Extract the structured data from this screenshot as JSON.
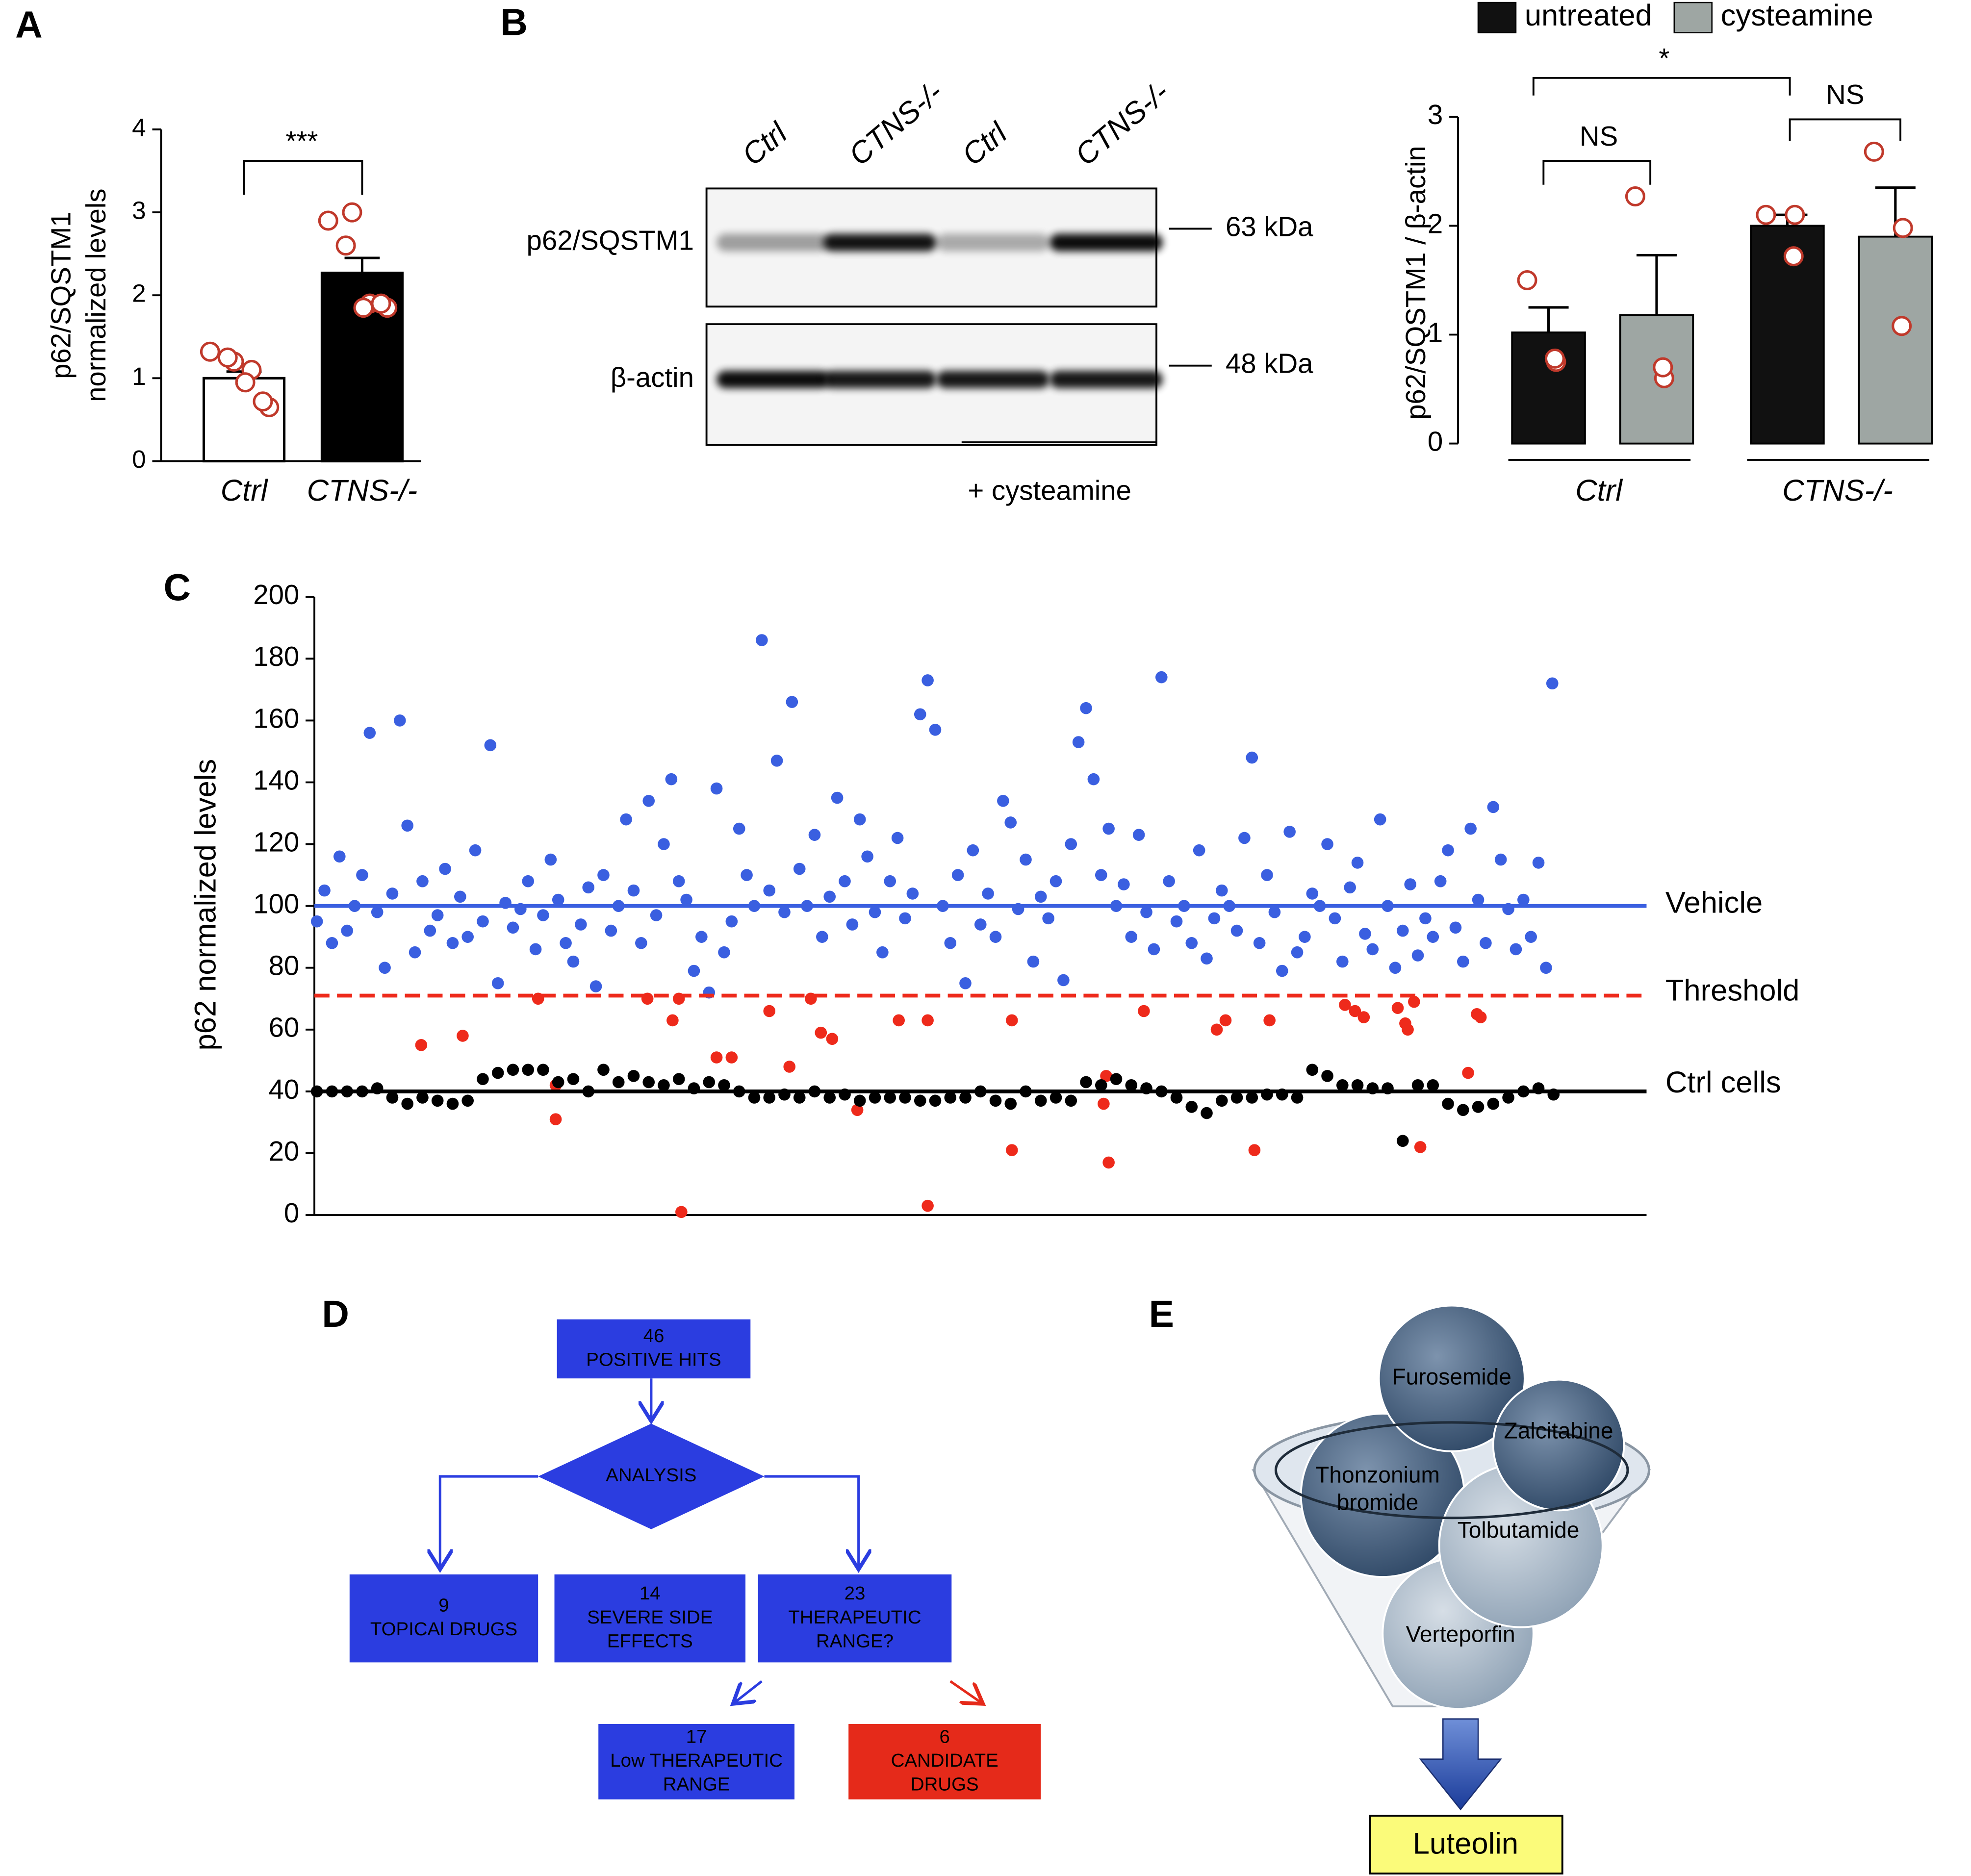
{
  "panels": [
    "A",
    "B",
    "C",
    "D",
    "E"
  ],
  "chart_data": [
    {
      "type": "bar",
      "ylabel": [
        "p62/SQSTM1",
        "normalized levels"
      ],
      "categories": [
        "Ctrl",
        "CTNS-/-"
      ],
      "values": [
        1.0,
        2.27
      ],
      "errors": [
        0.08,
        0.18
      ],
      "colors": [
        "#ffffff",
        "#000000"
      ],
      "point_color": "#c0392b",
      "points": [
        [
          1.32,
          1.2,
          1.25,
          1.1,
          0.95,
          0.65,
          0.72
        ],
        [
          2.9,
          3.0,
          2.6,
          1.9,
          1.85,
          1.85,
          1.9
        ]
      ],
      "significance": [
        "***"
      ],
      "ylim": [
        0,
        4
      ],
      "yticks": [
        0,
        1,
        2,
        3,
        4
      ]
    },
    {
      "type": "bar",
      "ylabel": "p62/SQSTM1 / β-actin",
      "categories": [
        "Ctrl",
        "CTNS-/-"
      ],
      "point_color": "#c0392b",
      "series": [
        {
          "name": "untreated",
          "color": "#111111",
          "values": [
            1.02,
            2.0
          ],
          "errors": [
            0.23,
            0.1
          ],
          "points": [
            [
              1.5,
              0.75,
              0.78
            ],
            [
              2.1,
              2.1,
              1.72
            ]
          ]
        },
        {
          "name": "cysteamine",
          "color": "#9ea6a3",
          "values": [
            1.18,
            1.9
          ],
          "errors": [
            0.55,
            0.45
          ],
          "points": [
            [
              2.27,
              0.6,
              0.7
            ],
            [
              2.68,
              1.98,
              1.08
            ]
          ]
        }
      ],
      "significance": [
        "NS",
        "NS",
        "*"
      ],
      "ylim": [
        0,
        3
      ],
      "yticks": [
        0,
        1,
        2,
        3
      ]
    },
    {
      "type": "scatter",
      "ylabel": "p62 normalized levels",
      "xlim": [
        0,
        1060
      ],
      "ylim": [
        0,
        200
      ],
      "yticks": [
        0,
        20,
        40,
        60,
        80,
        100,
        120,
        140,
        160,
        180,
        200
      ],
      "series": [
        {
          "color": "#3a5fe0",
          "x": [
            2,
            8,
            14,
            20,
            26,
            32,
            38,
            44,
            50,
            56,
            62,
            68,
            74,
            80,
            86,
            92,
            98,
            104,
            110,
            116,
            122,
            128,
            134,
            140,
            146,
            152,
            158,
            164,
            170,
            176,
            182,
            188,
            194,
            200,
            206,
            212,
            218,
            224,
            230,
            236,
            242,
            248,
            254,
            260,
            266,
            272,
            278,
            284,
            290,
            296,
            302,
            308,
            314,
            320,
            326,
            332,
            338,
            344,
            350,
            356,
            362,
            368,
            374,
            380,
            386,
            392,
            398,
            404,
            410,
            416,
            422,
            428,
            434,
            440,
            446,
            452,
            458,
            464,
            470,
            476,
            482,
            488,
            494,
            500,
            506,
            512,
            518,
            524,
            530,
            536,
            542,
            548,
            554,
            560,
            566,
            572,
            578,
            584,
            590,
            596,
            602,
            608,
            614,
            620,
            626,
            632,
            638,
            644,
            650,
            656,
            662,
            668,
            674,
            680,
            686,
            692,
            698,
            704,
            710,
            716,
            722,
            728,
            734,
            740,
            746,
            752,
            758,
            764,
            770,
            776,
            782,
            788,
            794,
            800,
            806,
            812,
            818,
            824,
            830,
            836,
            842,
            848,
            854,
            860,
            866,
            872,
            878,
            884,
            890,
            896,
            902,
            908,
            914,
            920,
            926,
            932,
            938,
            944,
            950,
            956,
            962,
            968,
            974,
            980,
            985
          ],
          "values": [
            95,
            105,
            88,
            116,
            92,
            100,
            110,
            156,
            98,
            80,
            104,
            160,
            126,
            85,
            108,
            92,
            97,
            112,
            88,
            103,
            90,
            118,
            95,
            152,
            75,
            101,
            93,
            99,
            108,
            86,
            97,
            115,
            102,
            88,
            82,
            94,
            106,
            74,
            110,
            92,
            100,
            128,
            105,
            88,
            134,
            97,
            120,
            141,
            108,
            102,
            79,
            90,
            72,
            138,
            85,
            95,
            125,
            110,
            100,
            186,
            105,
            147,
            98,
            166,
            112,
            100,
            123,
            90,
            103,
            135,
            108,
            94,
            128,
            116,
            98,
            85,
            108,
            122,
            96,
            104,
            162,
            173,
            157,
            100,
            88,
            110,
            75,
            118,
            94,
            104,
            90,
            134,
            127,
            99,
            115,
            82,
            103,
            96,
            108,
            76,
            120,
            153,
            164,
            141,
            110,
            125,
            100,
            107,
            90,
            123,
            98,
            86,
            174,
            108,
            95,
            100,
            88,
            118,
            83,
            96,
            105,
            100,
            92,
            122,
            148,
            88,
            110,
            98,
            79,
            124,
            85,
            90,
            104,
            100,
            120,
            96,
            82,
            106,
            114,
            91,
            86,
            128,
            100,
            80,
            92,
            107,
            84,
            96,
            90,
            108,
            118,
            93,
            82,
            125,
            102,
            88,
            132,
            115,
            99,
            86,
            102,
            90,
            114,
            80,
            172
          ]
        },
        {
          "color": "#ee2a1b",
          "x": [
            85,
            118,
            178,
            192,
            192,
            265,
            285,
            290,
            292,
            320,
            332,
            362,
            378,
            395,
            403,
            412,
            432,
            465,
            488,
            488,
            555,
            555,
            628,
            630,
            632,
            660,
            718,
            725,
            748,
            760,
            820,
            828,
            835,
            862,
            868,
            870,
            875,
            880,
            918,
            925,
            928
          ],
          "values": [
            55,
            58,
            70,
            42,
            31,
            70,
            63,
            70,
            1,
            51,
            51,
            66,
            48,
            70,
            59,
            57,
            34,
            63,
            63,
            3,
            63,
            21,
            36,
            45,
            17,
            66,
            60,
            63,
            21,
            63,
            68,
            66,
            64,
            67,
            62,
            60,
            69,
            22,
            46,
            65,
            64
          ]
        },
        {
          "color": "#000000",
          "x": [
            2,
            14,
            26,
            38,
            50,
            62,
            74,
            86,
            98,
            110,
            122,
            134,
            146,
            158,
            170,
            182,
            194,
            206,
            218,
            230,
            242,
            254,
            266,
            278,
            290,
            302,
            314,
            326,
            338,
            350,
            362,
            374,
            386,
            398,
            410,
            422,
            434,
            446,
            458,
            470,
            482,
            494,
            506,
            518,
            530,
            542,
            554,
            566,
            578,
            590,
            602,
            614,
            626,
            638,
            650,
            662,
            674,
            686,
            698,
            710,
            722,
            734,
            746,
            758,
            770,
            782,
            794,
            806,
            818,
            830,
            842,
            854,
            866,
            878,
            890,
            902,
            914,
            926,
            938,
            950,
            962,
            974,
            986
          ],
          "values": [
            40,
            40,
            40,
            40,
            41,
            38,
            36,
            38,
            37,
            36,
            37,
            44,
            46,
            47,
            47,
            47,
            43,
            44,
            40,
            47,
            43,
            45,
            43,
            42,
            44,
            41,
            43,
            42,
            40,
            38,
            38,
            39,
            38,
            40,
            38,
            39,
            37,
            38,
            38,
            38,
            37,
            37,
            38,
            38,
            40,
            37,
            36,
            40,
            37,
            38,
            37,
            43,
            42,
            44,
            42,
            41,
            40,
            38,
            35,
            33,
            37,
            38,
            38,
            39,
            39,
            38,
            47,
            45,
            42,
            42,
            41,
            41,
            24,
            42,
            42,
            36,
            34,
            35,
            36,
            38,
            40,
            41,
            39
          ]
        }
      ],
      "reference_lines": [
        {
          "value": 100,
          "label": "Vehicle",
          "color": "#3a5fe0",
          "style": "solid"
        },
        {
          "value": 71,
          "label": "Threshold",
          "color": "#ee2a1b",
          "style": "dashed"
        },
        {
          "value": 40,
          "label": "Ctrl cells",
          "color": "#000000",
          "style": "solid"
        }
      ]
    }
  ],
  "blot": {
    "lanes": [
      "Ctrl",
      "CTNS-/-",
      "Ctrl",
      "CTNS-/-"
    ],
    "rows": [
      {
        "label": "p62/SQSTM1",
        "size": "63 kDa"
      },
      {
        "label": "β-actin",
        "size": "48 kDa"
      }
    ],
    "treatment": "+ cysteamine"
  },
  "flowchart": {
    "nodes": [
      {
        "lines": [
          "46",
          "POSITIVE HITS"
        ]
      },
      {
        "lines": [
          "ANALYSIS"
        ]
      },
      {
        "lines": [
          "9",
          "TOPICAl DRUGS"
        ]
      },
      {
        "lines": [
          "14",
          "SEVERE SIDE",
          "EFFECTS"
        ]
      },
      {
        "lines": [
          "23",
          "THERAPEUTIC",
          "RANGE?"
        ]
      },
      {
        "lines": [
          "17",
          "Low THERAPEUTIC",
          "RANGE"
        ]
      },
      {
        "lines": [
          "6",
          "CANDIDATE",
          "DRUGS"
        ]
      }
    ]
  },
  "funnel": {
    "items": [
      [
        "Furosemide"
      ],
      [
        "Zalcitabine"
      ],
      [
        "Thonzonium",
        "bromide"
      ],
      [
        "Tolbutamide"
      ],
      [
        "Verteporfin"
      ]
    ],
    "result": "Luteolin"
  }
}
